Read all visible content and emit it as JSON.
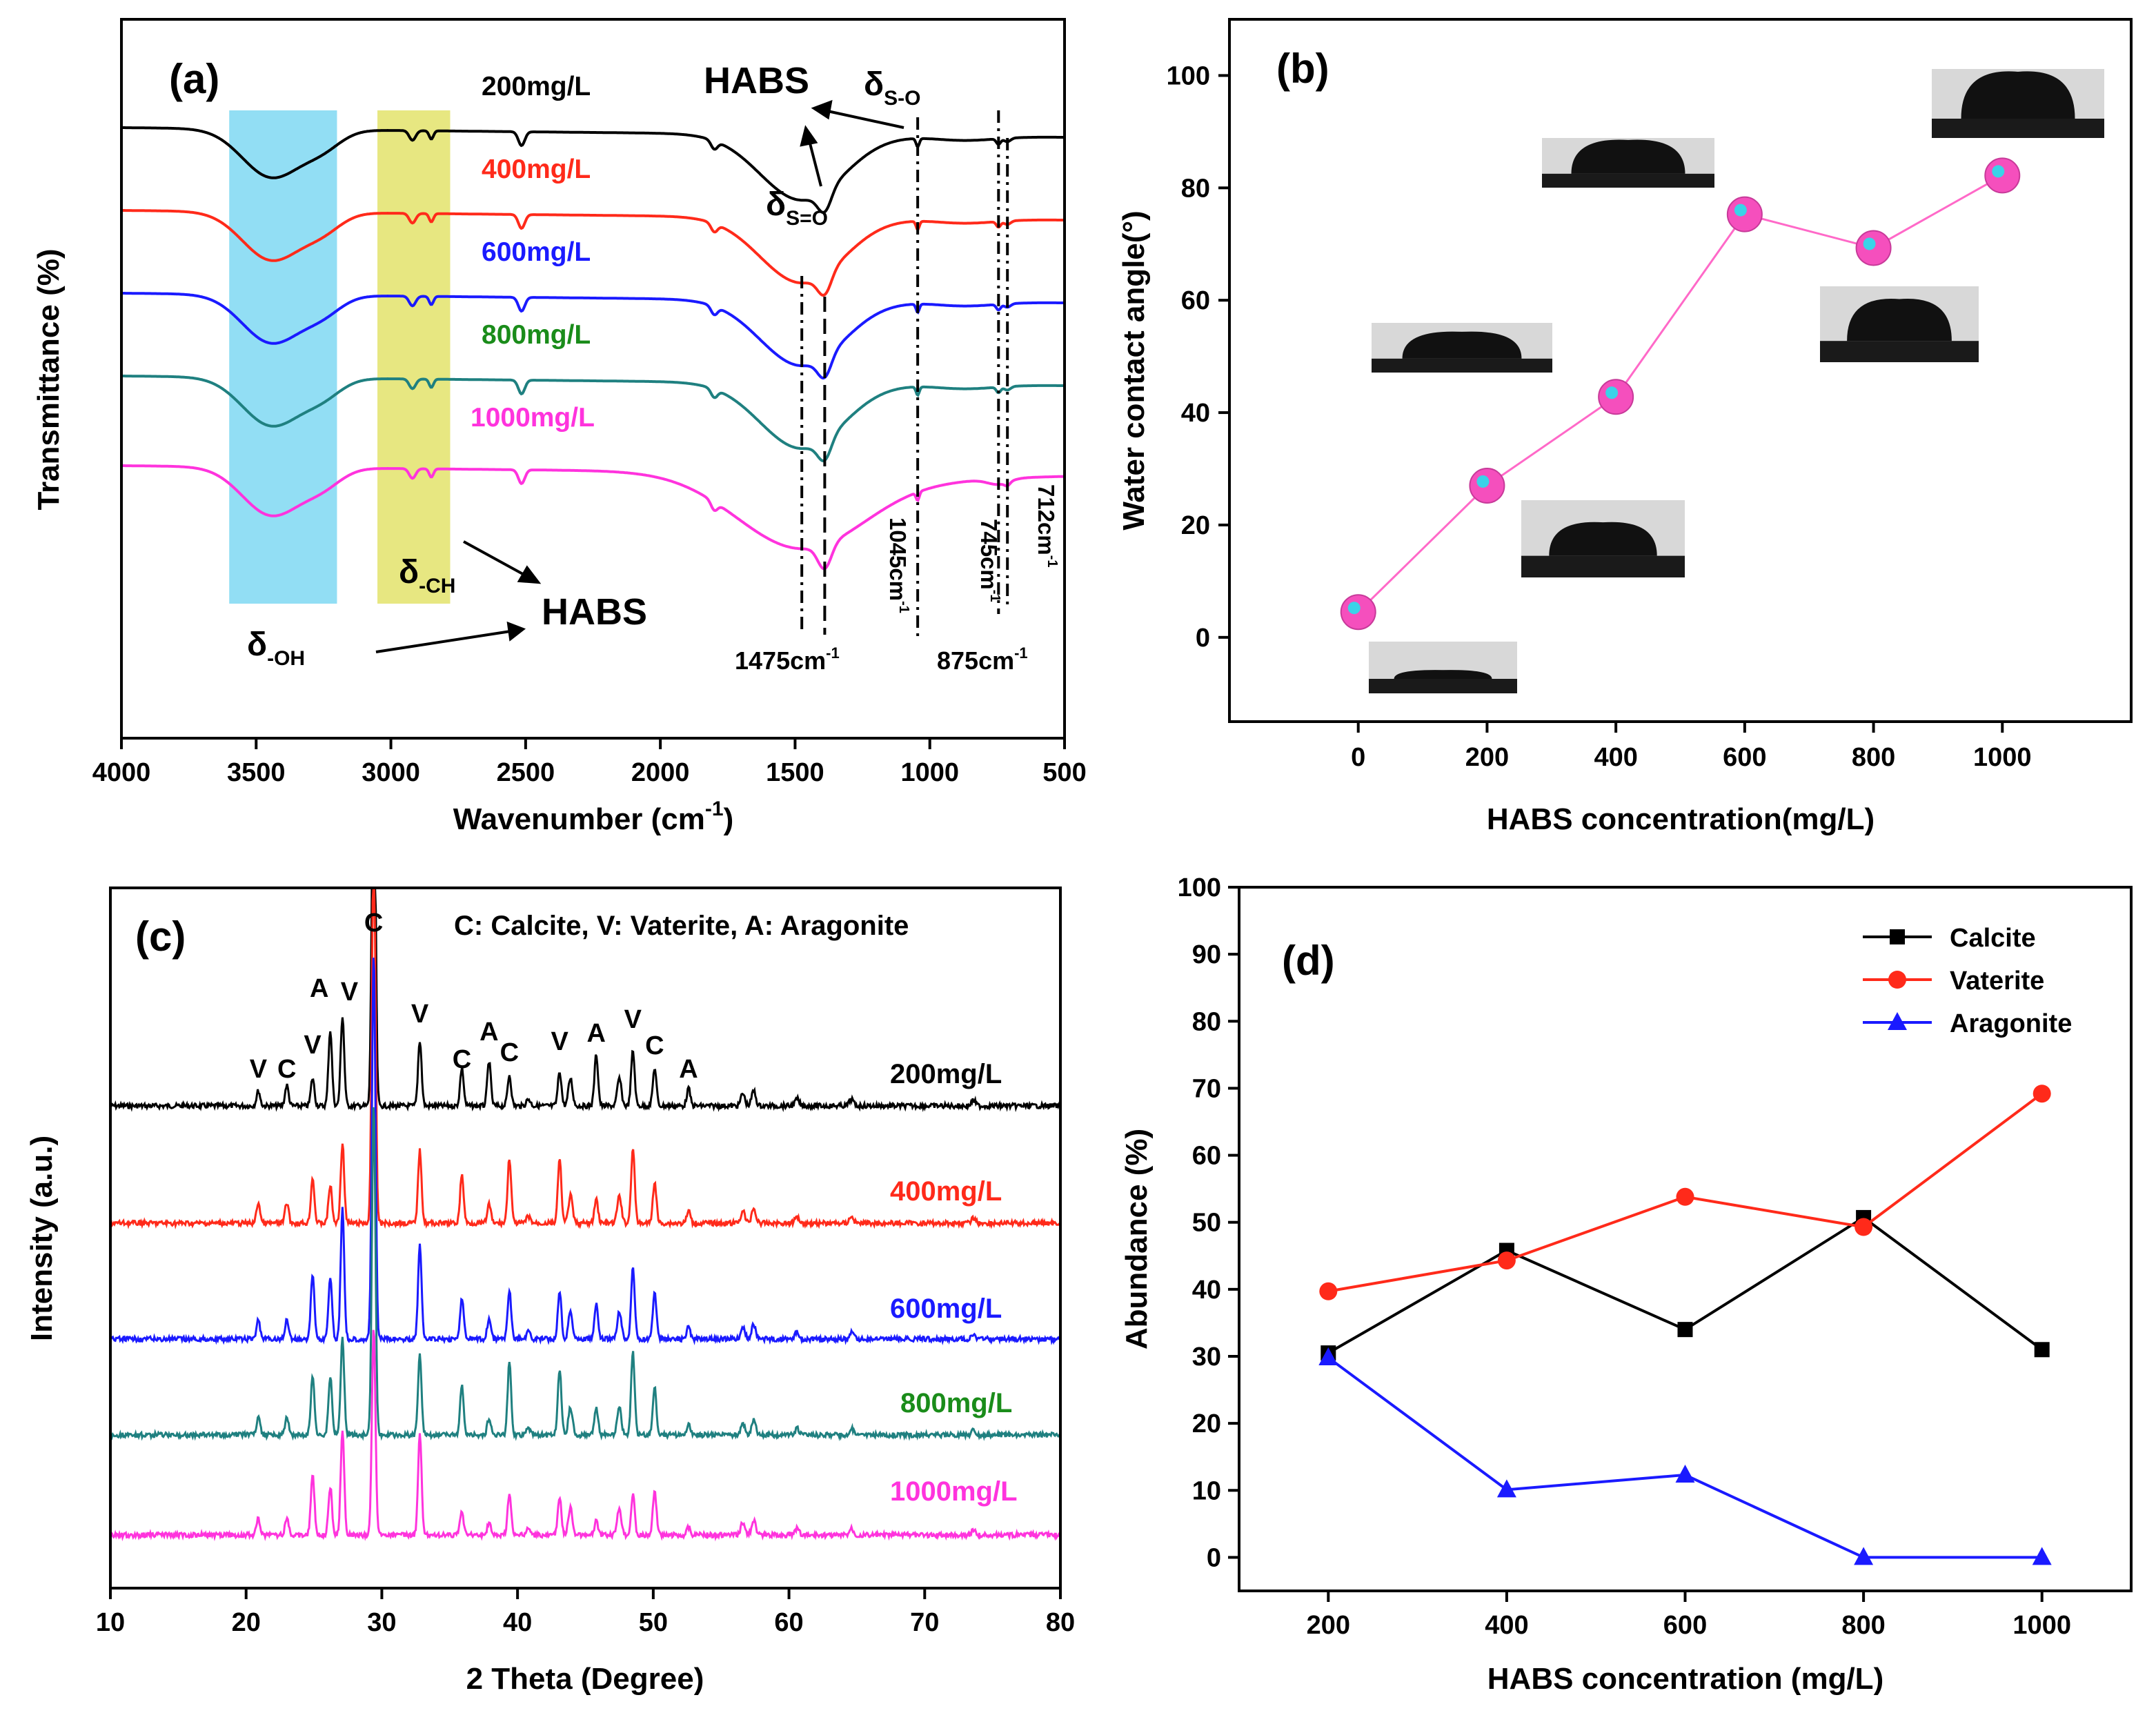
{
  "colors": {
    "black": "#000000",
    "red": "#ff2a1a",
    "blue": "#1a1aff",
    "teal": "#1f8080",
    "green": "#1a8c1a",
    "magenta": "#ff33dd",
    "pink": "#ff69c8",
    "cyan_band": "#7fd8f2",
    "yellow_band": "#e3e36b",
    "marker_pink": "#f54fbd",
    "marker_cyan": "#3ad3e8"
  },
  "chart_data": [
    {
      "panel": "(a)",
      "type": "line",
      "xlabel": "Wavenumber (cm-1)",
      "xlabel_main": "Wavenumber (cm",
      "xlabel_sup": "-1",
      "xlabel_tail": ")",
      "ylabel": "Transmittance (%)",
      "xlim": [
        4000,
        500
      ],
      "xticks": [
        "4000",
        "3500",
        "3000",
        "2500",
        "2000",
        "1500",
        "1000",
        "500"
      ],
      "bands": [
        {
          "from": 3600,
          "to": 3200,
          "color": "cyan"
        },
        {
          "from": 3050,
          "to": 2780,
          "color": "yellow"
        }
      ],
      "series": [
        {
          "name": "200mg/L",
          "color": "black",
          "offset": 0
        },
        {
          "name": "400mg/L",
          "color": "red",
          "offset": 1
        },
        {
          "name": "600mg/L",
          "color": "blue",
          "offset": 2
        },
        {
          "name": "800mg/L",
          "color": "green",
          "offset": 3
        },
        {
          "name": "1000mg/L",
          "color": "magenta",
          "offset": 4
        }
      ],
      "peaks_cm1": [
        3440,
        2920,
        2850,
        2515,
        1800,
        1475,
        1390,
        1045,
        875,
        745,
        712
      ],
      "annotations": {
        "habs_top": "HABS",
        "habs_bottom": "HABS",
        "delta": "δ",
        "s_o": "S-O",
        "s_eq_o": "S=O",
        "ch": "-CH",
        "oh": "-OH",
        "p1475": "1475cm",
        "p1045": "1045cm",
        "p745": "745cm",
        "p712": "712cm",
        "p875": "875cm",
        "minus1": "-1"
      }
    },
    {
      "panel": "(b)",
      "type": "line",
      "xlabel": "HABS concentration(mg/L)",
      "ylabel": "Water contact angle(°)",
      "xlim": [
        -200,
        1200
      ],
      "ylim": [
        -15,
        110
      ],
      "xticks": [
        0,
        200,
        400,
        600,
        800,
        1000
      ],
      "yticks": [
        0,
        20,
        40,
        60,
        80,
        100
      ],
      "x": [
        0,
        200,
        400,
        600,
        800,
        1000
      ],
      "values": [
        4.5,
        27,
        42.8,
        75.3,
        69.3,
        82.2
      ]
    },
    {
      "panel": "(c)",
      "type": "line",
      "xlabel": "2 Theta (Degree)",
      "ylabel": "Intensity (a.u.)",
      "xlim": [
        10,
        80
      ],
      "xticks": [
        10,
        20,
        30,
        40,
        50,
        60,
        70,
        80
      ],
      "legend_text": "C: Calcite,  V: Vaterite,  A: Aragonite",
      "series": [
        {
          "name": "200mg/L",
          "color": "black"
        },
        {
          "name": "400mg/L",
          "color": "red"
        },
        {
          "name": "600mg/L",
          "color": "blue"
        },
        {
          "name": "800mg/L",
          "color": "green"
        },
        {
          "name": "1000mg/L",
          "color": "magenta"
        }
      ],
      "peaks_2theta": [
        {
          "pos": 20.9,
          "label": "V"
        },
        {
          "pos": 23.0,
          "label": "C"
        },
        {
          "pos": 24.9,
          "label": "V"
        },
        {
          "pos": 26.2,
          "label": "A"
        },
        {
          "pos": 27.1,
          "label": "V"
        },
        {
          "pos": 29.4,
          "label": "C"
        },
        {
          "pos": 32.8,
          "label": "V"
        },
        {
          "pos": 35.9,
          "label": "C"
        },
        {
          "pos": 37.9,
          "label": "A"
        },
        {
          "pos": 39.4,
          "label": "C"
        },
        {
          "pos": 43.1,
          "label": "V"
        },
        {
          "pos": 45.8,
          "label": "A"
        },
        {
          "pos": 48.5,
          "label": "V"
        },
        {
          "pos": 50.1,
          "label": "C"
        },
        {
          "pos": 52.6,
          "label": "A"
        }
      ]
    },
    {
      "panel": "(d)",
      "type": "line",
      "xlabel": "HABS concentration (mg/L)",
      "ylabel": "Abundance (%)",
      "xlim": [
        100,
        1100
      ],
      "ylim": [
        -5,
        100
      ],
      "categories": [
        200,
        400,
        600,
        800,
        1000
      ],
      "xticks": [
        200,
        400,
        600,
        800,
        1000
      ],
      "yticks": [
        0,
        10,
        20,
        30,
        40,
        50,
        60,
        70,
        80,
        90,
        100
      ],
      "series": [
        {
          "name": "Calcite",
          "color": "black",
          "marker": "square",
          "values": [
            30.5,
            45.8,
            34.0,
            50.7,
            31.0
          ]
        },
        {
          "name": "Vaterite",
          "color": "red",
          "marker": "circle",
          "values": [
            39.7,
            44.3,
            53.8,
            49.3,
            69.2
          ]
        },
        {
          "name": "Aragonite",
          "color": "blue",
          "marker": "triangle",
          "values": [
            29.8,
            10.1,
            12.3,
            0.0,
            0.0
          ]
        }
      ]
    }
  ]
}
